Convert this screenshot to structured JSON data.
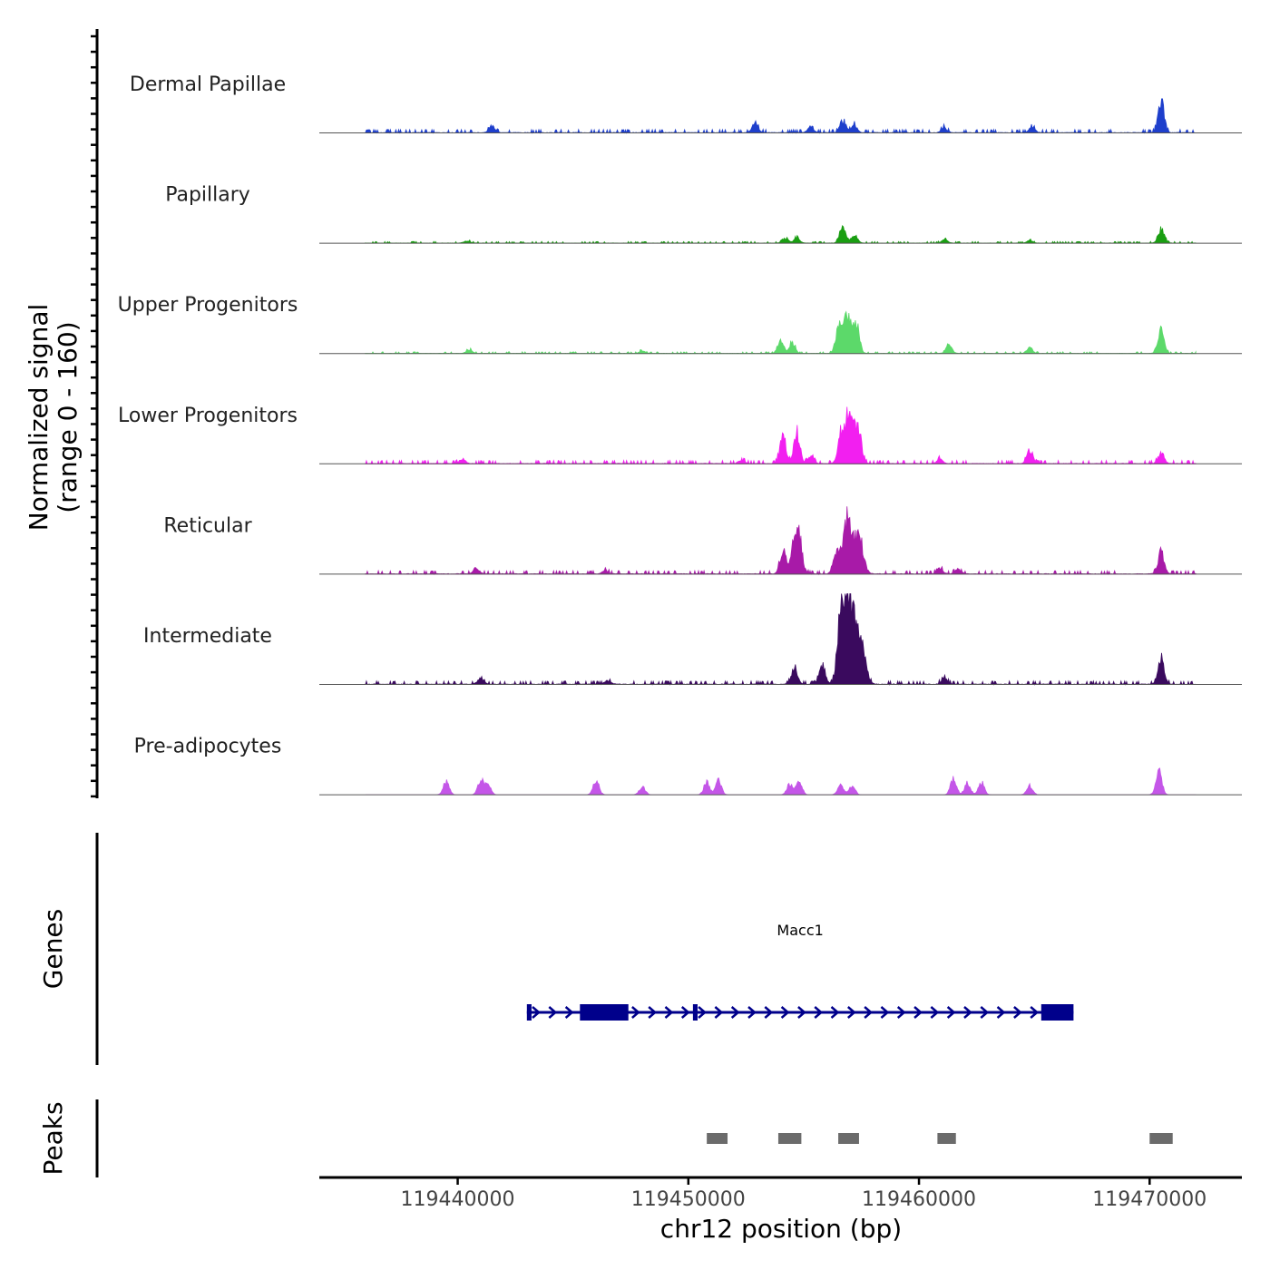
{
  "chart_data": {
    "type": "area",
    "title": "",
    "signal_axis_label": [
      "Normalized signal",
      "(range 0 - 160)"
    ],
    "signal_range": [
      0,
      160
    ],
    "xlabel": "chr12 position (bp)",
    "xlim": [
      119434000,
      119474000
    ],
    "xticks": [
      119440000,
      119450000,
      119460000,
      119470000
    ],
    "xtick_labels": [
      "119440000",
      "119450000",
      "119460000",
      "119470000"
    ],
    "signal_track_start": 119436000,
    "signal_track_end": 119472000,
    "tracks": [
      {
        "name": "Dermal Papillae",
        "color": "#1E3FCC",
        "base": 2,
        "peaks": [
          [
            119441500,
            12
          ],
          [
            119452900,
            18
          ],
          [
            119455300,
            10
          ],
          [
            119456700,
            22
          ],
          [
            119457200,
            12
          ],
          [
            119461100,
            8
          ],
          [
            119464900,
            10
          ],
          [
            119470500,
            56
          ]
        ]
      },
      {
        "name": "Papillary",
        "color": "#1A9E12",
        "base": 1,
        "peaks": [
          [
            119440400,
            4
          ],
          [
            119454200,
            8
          ],
          [
            119454700,
            9
          ],
          [
            119456700,
            28
          ],
          [
            119457200,
            14
          ],
          [
            119461100,
            6
          ],
          [
            119464800,
            4
          ],
          [
            119470500,
            24
          ]
        ]
      },
      {
        "name": "Upper Progenitors",
        "color": "#5CD96A",
        "base": 1,
        "peaks": [
          [
            119440500,
            6
          ],
          [
            119448000,
            4
          ],
          [
            119454000,
            22
          ],
          [
            119454500,
            18
          ],
          [
            119456500,
            40
          ],
          [
            119456900,
            70
          ],
          [
            119457300,
            48
          ],
          [
            119461300,
            14
          ],
          [
            119464800,
            10
          ],
          [
            119470500,
            42
          ]
        ]
      },
      {
        "name": "Lower Progenitors",
        "color": "#F21FF0",
        "base": 2,
        "peaks": [
          [
            119440200,
            8
          ],
          [
            119452300,
            6
          ],
          [
            119454100,
            50
          ],
          [
            119454700,
            56
          ],
          [
            119455300,
            12
          ],
          [
            119456600,
            44
          ],
          [
            119457000,
            96
          ],
          [
            119457400,
            50
          ],
          [
            119460900,
            8
          ],
          [
            119464800,
            24
          ],
          [
            119470500,
            18
          ]
        ]
      },
      {
        "name": "Reticular",
        "color": "#A81AA8",
        "base": 2,
        "peaks": [
          [
            119440800,
            10
          ],
          [
            119446400,
            6
          ],
          [
            119454100,
            40
          ],
          [
            119454700,
            82
          ],
          [
            119456400,
            40
          ],
          [
            119456900,
            96
          ],
          [
            119457400,
            64
          ],
          [
            119460900,
            10
          ],
          [
            119461700,
            8
          ],
          [
            119470500,
            38
          ]
        ]
      },
      {
        "name": "Intermediate",
        "color": "#3A0A5E",
        "base": 2,
        "peaks": [
          [
            119441000,
            10
          ],
          [
            119446500,
            6
          ],
          [
            119454600,
            28
          ],
          [
            119455800,
            36
          ],
          [
            119456700,
            160
          ],
          [
            119457100,
            120
          ],
          [
            119457500,
            70
          ],
          [
            119461100,
            10
          ],
          [
            119470500,
            46
          ]
        ]
      },
      {
        "name": "Pre-adipocytes",
        "color": "#C456E8",
        "base": 0,
        "peaks": [
          [
            119439500,
            22
          ],
          [
            119441000,
            26
          ],
          [
            119441300,
            18
          ],
          [
            119446000,
            24
          ],
          [
            119448000,
            14
          ],
          [
            119450800,
            22
          ],
          [
            119451300,
            26
          ],
          [
            119454400,
            18
          ],
          [
            119454800,
            24
          ],
          [
            119456600,
            18
          ],
          [
            119457100,
            16
          ],
          [
            119461500,
            28
          ],
          [
            119462100,
            20
          ],
          [
            119462700,
            22
          ],
          [
            119464800,
            16
          ],
          [
            119470400,
            40
          ]
        ]
      }
    ],
    "genes_label": "Genes",
    "gene": {
      "name": "Macc1",
      "start": 119443000,
      "end": 119466700,
      "strand": "+",
      "color": "#00008B",
      "exons": [
        [
          119443000,
          119443200
        ],
        [
          119445300,
          119447400
        ],
        [
          119450200,
          119450400
        ],
        [
          119465300,
          119466700
        ]
      ]
    },
    "peaks_label": "Peaks",
    "peak_regions": [
      [
        119450800,
        119451700
      ],
      [
        119453900,
        119454900
      ],
      [
        119456500,
        119457400
      ],
      [
        119460800,
        119461600
      ],
      [
        119470000,
        119471000
      ]
    ],
    "peak_color": "#6B6B6B"
  }
}
